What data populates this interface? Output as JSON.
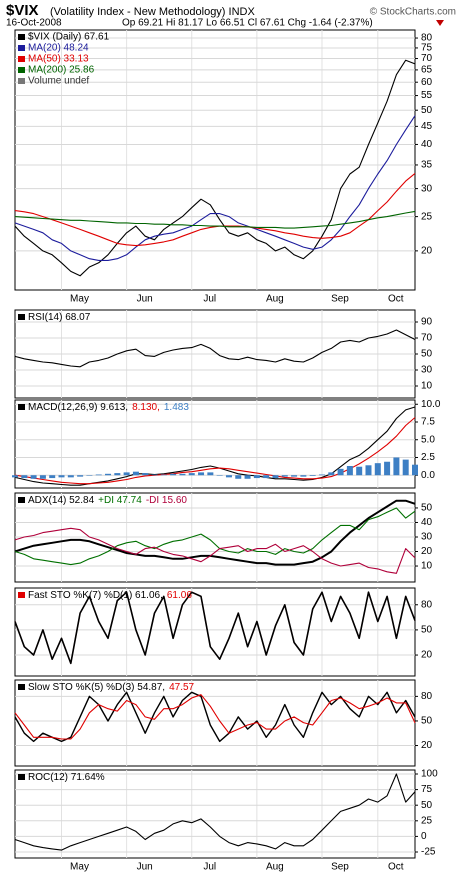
{
  "chart_data": [
    {
      "type": "line",
      "title": "$VIX",
      "subtitle": "(Volatility Index - New Methodology) INDX",
      "credit": "© StockCharts.com",
      "date": "16-Oct-2008",
      "quote": "Op 69.21 Hi 81.17 Lo 66.51 Cl 67.61 Chg -1.64 (-2.37%)",
      "volume_label": "Volume undef",
      "log": true,
      "grid": true,
      "ylim": [
        15.5,
        84.3
      ],
      "yticks": [
        20,
        25,
        30,
        35,
        40,
        45,
        50,
        55,
        60,
        65,
        70,
        75,
        80
      ],
      "categories": [
        null,
        null,
        null,
        null,
        null,
        "May",
        null,
        null,
        null,
        null,
        null,
        null,
        "Jun",
        null,
        null,
        null,
        null,
        null,
        null,
        "Jul",
        null,
        null,
        null,
        null,
        null,
        null,
        "Aug",
        null,
        null,
        null,
        null,
        null,
        null,
        "Sep",
        null,
        null,
        null,
        null,
        null,
        "Oct",
        null,
        null,
        null,
        null
      ],
      "series": [
        {
          "name": "$VIX (Daily) 67.61",
          "color": "#000000",
          "values": [
            23.5,
            22,
            21,
            20,
            19.5,
            18.5,
            17.5,
            17,
            18,
            18.5,
            19.5,
            21,
            22.5,
            23.5,
            22,
            21.5,
            23,
            24,
            25,
            26.5,
            28,
            27,
            24.5,
            22.5,
            22,
            22.5,
            21.5,
            21,
            20,
            20.5,
            19.5,
            19,
            20,
            22,
            24.5,
            30,
            33,
            34.5,
            40,
            46,
            53,
            63,
            69.25,
            67.61
          ]
        },
        {
          "name": "MA(20) 48.24",
          "color": "#1c1c9c",
          "values": [
            24,
            23.5,
            23,
            22.5,
            21.5,
            21,
            20,
            19.5,
            19,
            18.8,
            18.8,
            19,
            19.5,
            20.5,
            21.5,
            22,
            22.3,
            22.5,
            23,
            23.5,
            24.5,
            25.5,
            25.5,
            25,
            24,
            23.5,
            23,
            22.5,
            22,
            21.5,
            21,
            20.5,
            20.2,
            20.5,
            21.5,
            23,
            25,
            27,
            30,
            33,
            36,
            40,
            44,
            48.24
          ]
        },
        {
          "name": "MA(50) 33.13",
          "color": "#e00000",
          "values": [
            26,
            25.8,
            25.5,
            25,
            24.5,
            24,
            23.5,
            23,
            22.5,
            22,
            21.5,
            21,
            20.8,
            20.7,
            20.8,
            21,
            21.2,
            21.5,
            22,
            22.5,
            23,
            23.3,
            23.5,
            23.5,
            23.5,
            23.4,
            23.2,
            23,
            22.8,
            22.5,
            22.3,
            22,
            21.8,
            21.7,
            21.8,
            22,
            22.5,
            23.5,
            24.5,
            26,
            27.5,
            29.5,
            31.5,
            33.13
          ]
        },
        {
          "name": "MA(200) 25.86",
          "color": "#006400",
          "values": [
            25,
            24.9,
            24.8,
            24.7,
            24.6,
            24.5,
            24.4,
            24.4,
            24.3,
            24.2,
            24.1,
            24,
            24,
            23.9,
            23.9,
            23.8,
            23.8,
            23.7,
            23.7,
            23.6,
            23.6,
            23.5,
            23.5,
            23.4,
            23.4,
            23.4,
            23.3,
            23.3,
            23.3,
            23.2,
            23.2,
            23.3,
            23.4,
            23.5,
            23.6,
            23.8,
            24,
            24.2,
            24.5,
            24.8,
            25,
            25.3,
            25.6,
            25.86
          ]
        }
      ]
    },
    {
      "type": "line",
      "grid": true,
      "ylim": [
        -5,
        105
      ],
      "yticks": [
        90,
        70,
        50,
        30,
        10
      ],
      "series": [
        {
          "name": "RSI(14) 68.07",
          "color": "#000000",
          "values": [
            47,
            44,
            42,
            40,
            39,
            37,
            35,
            34,
            40,
            42,
            45,
            50,
            54,
            56,
            48,
            47,
            52,
            55,
            57,
            58,
            62,
            57,
            48,
            44,
            43,
            46,
            43,
            42,
            40,
            44,
            41,
            40,
            45,
            52,
            57,
            65,
            67,
            65,
            70,
            72,
            75,
            80,
            74,
            68.07
          ]
        }
      ]
    },
    {
      "type": "line",
      "grid": true,
      "ylim": [
        -1.8,
        10.6
      ],
      "yticks": [
        {
          "value": 10,
          "label": "10.0"
        },
        7.5,
        {
          "value": 5,
          "label": "5.0"
        },
        2.5,
        {
          "value": 0,
          "label": "0.0"
        }
      ],
      "series": [
        {
          "name": "MACD(12,26,9) 9.613,",
          "color": "#000000",
          "values": [
            -0.3,
            -0.6,
            -0.9,
            -1.1,
            -1.2,
            -1.3,
            -1.4,
            -1.4,
            -1.2,
            -1,
            -0.8,
            -0.5,
            -0.2,
            0.2,
            0.2,
            0.1,
            0.2,
            0.4,
            0.6,
            0.8,
            1.1,
            1.3,
            1,
            0.6,
            0.2,
            0,
            -0.1,
            -0.3,
            -0.5,
            -0.5,
            -0.6,
            -0.7,
            -0.6,
            -0.3,
            0.2,
            1.2,
            2.2,
            2.8,
            3.8,
            5,
            6.2,
            8,
            9.2,
            9.613
          ]
        },
        {
          "name": "8.130,",
          "color": "#e00000",
          "values": [
            0,
            -0.2,
            -0.4,
            -0.6,
            -0.8,
            -1,
            -1.1,
            -1.2,
            -1.2,
            -1.1,
            -1,
            -0.8,
            -0.6,
            -0.3,
            -0.1,
            0,
            0.1,
            0.2,
            0.4,
            0.5,
            0.7,
            0.9,
            1,
            0.9,
            0.7,
            0.5,
            0.3,
            0.1,
            -0.1,
            -0.3,
            -0.4,
            -0.5,
            -0.5,
            -0.4,
            -0.2,
            0.3,
            0.9,
            1.6,
            2.4,
            3.3,
            4.3,
            5.5,
            7,
            8.13
          ]
        },
        {
          "name": "1.483",
          "color": "#3d7fc4",
          "style": "bar",
          "values": [
            -0.3,
            -0.4,
            -0.5,
            -0.5,
            -0.4,
            -0.3,
            -0.3,
            -0.2,
            0,
            0.1,
            0.2,
            0.3,
            0.4,
            0.5,
            0.3,
            0.1,
            0.1,
            0.2,
            0.2,
            0.3,
            0.4,
            0.4,
            0,
            -0.3,
            -0.5,
            -0.5,
            -0.4,
            -0.4,
            -0.4,
            -0.2,
            -0.2,
            -0.2,
            -0.1,
            0.1,
            0.4,
            0.9,
            1.3,
            1.2,
            1.4,
            1.7,
            1.9,
            2.5,
            2.2,
            1.483
          ]
        }
      ]
    },
    {
      "type": "line",
      "grid": true,
      "ylim": [
        -1,
        60.3
      ],
      "yticks": [
        50,
        40,
        30,
        20,
        10
      ],
      "series": [
        {
          "name": "ADX(14) 52.84",
          "color": "#000000",
          "width": 2,
          "values": [
            20,
            22,
            24,
            25,
            26,
            27,
            28,
            28,
            27,
            25,
            23,
            21,
            19,
            18,
            17,
            17,
            16,
            15,
            15,
            16,
            17,
            17,
            16,
            15,
            14,
            13,
            12,
            12,
            11,
            11,
            11,
            12,
            13,
            16,
            20,
            27,
            33,
            38,
            43,
            47,
            51,
            55,
            55,
            52.84
          ]
        },
        {
          "name": "+DI 47.74",
          "color": "#007000",
          "values": [
            20,
            18,
            15,
            14,
            13,
            12,
            11,
            12,
            15,
            17,
            20,
            24,
            26,
            27,
            24,
            22,
            25,
            27,
            28,
            30,
            32,
            28,
            22,
            20,
            19,
            22,
            20,
            20,
            18,
            22,
            20,
            19,
            22,
            28,
            33,
            38,
            38,
            35,
            42,
            44,
            47,
            50,
            43,
            47.74
          ]
        },
        {
          "name": "-DI 15.60",
          "color": "#b0003a",
          "values": [
            28,
            30,
            31,
            33,
            34,
            35,
            36,
            35,
            30,
            28,
            25,
            22,
            20,
            18,
            22,
            23,
            20,
            18,
            17,
            15,
            13,
            17,
            22,
            23,
            24,
            20,
            22,
            22,
            25,
            20,
            22,
            24,
            20,
            15,
            12,
            10,
            11,
            12,
            9,
            8,
            6,
            5,
            22,
            15.6
          ]
        }
      ]
    },
    {
      "type": "line",
      "grid": true,
      "ylim": [
        -5,
        100
      ],
      "yticks": [
        80,
        50,
        20
      ],
      "series": [
        {
          "name": "61.06",
          "color": "#e00000",
          "values": [
            60,
            30,
            20,
            50,
            15,
            40,
            10,
            70,
            90,
            60,
            40,
            85,
            95,
            50,
            20,
            70,
            90,
            40,
            80,
            95,
            90,
            30,
            15,
            40,
            70,
            30,
            60,
            20,
            55,
            80,
            35,
            20,
            75,
            95,
            60,
            90,
            70,
            40,
            95,
            60,
            90,
            40,
            90,
            61.06
          ]
        },
        {
          "name": "Fast STO %K(7) %D(1) 61.06,",
          "color": "#000000",
          "width": 1.6,
          "values": [
            60,
            30,
            20,
            50,
            15,
            40,
            10,
            70,
            90,
            60,
            40,
            85,
            95,
            50,
            20,
            70,
            90,
            40,
            80,
            95,
            90,
            30,
            15,
            40,
            70,
            30,
            60,
            20,
            55,
            80,
            35,
            20,
            75,
            95,
            60,
            90,
            70,
            40,
            95,
            60,
            90,
            40,
            90,
            61.06
          ]
        }
      ]
    },
    {
      "type": "line",
      "grid": true,
      "ylim": [
        -5,
        100
      ],
      "yticks": [
        80,
        50,
        20
      ],
      "series": [
        {
          "name": "Slow STO %K(5) %D(3) 54.87,",
          "color": "#000000",
          "width": 1.4,
          "values": [
            55,
            35,
            25,
            35,
            30,
            25,
            30,
            55,
            80,
            70,
            50,
            70,
            85,
            60,
            35,
            60,
            80,
            55,
            75,
            85,
            80,
            45,
            25,
            35,
            55,
            40,
            50,
            30,
            45,
            70,
            45,
            30,
            60,
            85,
            70,
            80,
            65,
            55,
            80,
            70,
            85,
            60,
            75,
            54.87
          ]
        },
        {
          "name": "47.57",
          "color": "#e00000",
          "values": [
            60,
            45,
            30,
            30,
            30,
            28,
            28,
            40,
            60,
            70,
            65,
            62,
            75,
            70,
            55,
            52,
            65,
            65,
            70,
            78,
            82,
            68,
            50,
            35,
            40,
            45,
            48,
            40,
            40,
            50,
            55,
            48,
            45,
            60,
            75,
            78,
            72,
            65,
            68,
            72,
            78,
            72,
            72,
            47.57
          ]
        }
      ]
    },
    {
      "type": "line",
      "grid": true,
      "ylim": [
        -34.6,
        106.4
      ],
      "yticks": [
        100,
        75,
        50,
        25,
        0,
        -25
      ],
      "categories": [
        null,
        null,
        null,
        null,
        null,
        "May",
        null,
        null,
        null,
        null,
        null,
        null,
        "Jun",
        null,
        null,
        null,
        null,
        null,
        null,
        "Jul",
        null,
        null,
        null,
        null,
        null,
        null,
        "Aug",
        null,
        null,
        null,
        null,
        null,
        null,
        "Sep",
        null,
        null,
        null,
        null,
        null,
        "Oct",
        null,
        null,
        null,
        null
      ],
      "series": [
        {
          "name": "ROC(12) 71.64%",
          "color": "#000000",
          "values": [
            -5,
            -10,
            -15,
            -18,
            -20,
            -22,
            -15,
            -10,
            -5,
            0,
            5,
            10,
            15,
            8,
            -5,
            5,
            10,
            20,
            25,
            22,
            28,
            15,
            0,
            -10,
            -15,
            -10,
            -12,
            -15,
            -20,
            -10,
            -15,
            -15,
            -5,
            10,
            25,
            40,
            45,
            50,
            60,
            55,
            65,
            100,
            55,
            71.64
          ]
        }
      ]
    }
  ]
}
